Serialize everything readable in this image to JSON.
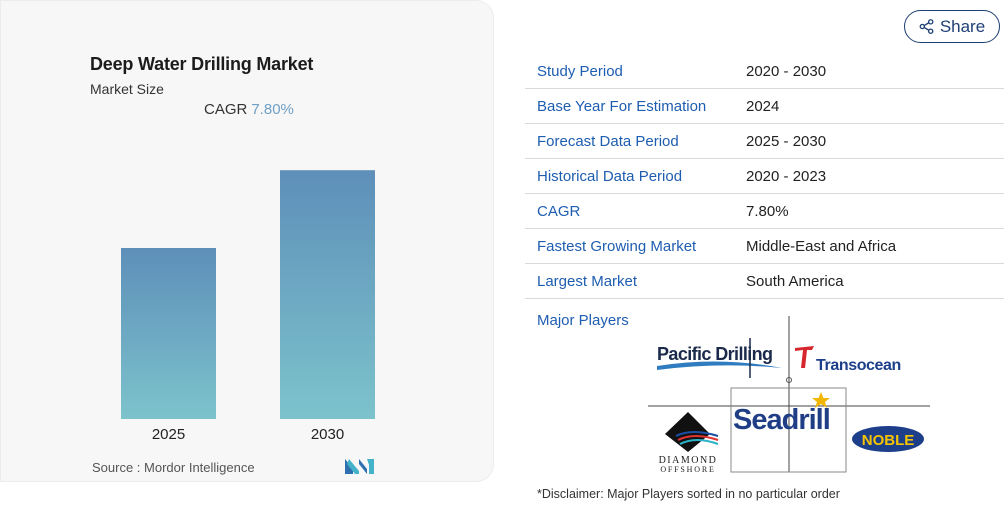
{
  "chart_data": {
    "type": "bar",
    "title": "Deep Water Drilling Market",
    "subtitle": "Market Size",
    "cagr_label": "CAGR",
    "cagr_value": "7.80%",
    "categories": [
      "2025",
      "2030"
    ],
    "values": [
      1.0,
      1.455
    ],
    "bar_color_top": "#5e8fb9",
    "bar_color_bottom": "#7cc3cc",
    "source_label": "Source :",
    "source_name": "Mordor Intelligence"
  },
  "share": {
    "label": "Share",
    "icon": "share-icon"
  },
  "info_table": [
    {
      "label": "Study Period",
      "value": "2020 - 2030"
    },
    {
      "label": "Base Year For Estimation",
      "value": "2024"
    },
    {
      "label": "Forecast Data Period",
      "value": "2025 - 2030"
    },
    {
      "label": "Historical Data Period",
      "value": "2020 - 2023"
    },
    {
      "label": "CAGR",
      "value": "7.80%"
    },
    {
      "label": "Fastest Growing Market",
      "value": "Middle-East and Africa"
    },
    {
      "label": "Largest Market",
      "value": "South America"
    }
  ],
  "major_players": {
    "label": "Major Players",
    "logos": [
      {
        "name": "Pacific Drilling",
        "text": "Pacific Drilling"
      },
      {
        "name": "Transocean",
        "text": "Transocean"
      },
      {
        "name": "Seadrill",
        "text": "Seadrill"
      },
      {
        "name": "Diamond Offshore",
        "text_top": "DIAMOND",
        "text_bottom": "OFFSHORE"
      },
      {
        "name": "Noble",
        "text": "NOBLE"
      }
    ]
  },
  "disclaimer": "*Disclaimer: Major Players sorted in no particular order",
  "colors": {
    "accent": "#1e5db0",
    "brand_dark": "#1e3f73"
  }
}
